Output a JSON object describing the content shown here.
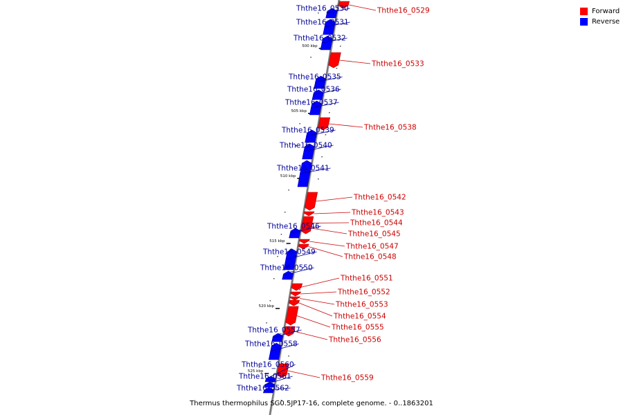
{
  "legend": {
    "items": [
      {
        "label": "Forward",
        "color": "#ff0000"
      },
      {
        "label": "Reverse",
        "color": "#0000ff"
      }
    ]
  },
  "caption": "Thermus thermophilus SG0.5JP17-16, complete genome. - 0..1863201",
  "colors": {
    "forward": "#ff0000",
    "reverse": "#0000ff",
    "backbone": "#888888",
    "label_forward": "#cc0000",
    "label_reverse": "#00009a"
  },
  "ticks": [
    "500 kbp",
    "505 kbp",
    "510 kbp",
    "515 kbp",
    "520 kbp",
    "525 kbp"
  ],
  "genes": [
    {
      "name": "Ththe16_0529",
      "strand": "forward"
    },
    {
      "name": "Ththe16_0530",
      "strand": "reverse"
    },
    {
      "name": "Ththe16_0531",
      "strand": "reverse"
    },
    {
      "name": "Ththe16_0532",
      "strand": "reverse"
    },
    {
      "name": "Ththe16_0533",
      "strand": "forward"
    },
    {
      "name": "Ththe16_0535",
      "strand": "reverse"
    },
    {
      "name": "Ththe16_0536",
      "strand": "reverse"
    },
    {
      "name": "Ththe16_0537",
      "strand": "reverse"
    },
    {
      "name": "Ththe16_0538",
      "strand": "forward"
    },
    {
      "name": "Ththe16_0539",
      "strand": "reverse"
    },
    {
      "name": "Ththe16_0540",
      "strand": "reverse"
    },
    {
      "name": "Ththe16_0541",
      "strand": "reverse"
    },
    {
      "name": "Ththe16_0542",
      "strand": "forward"
    },
    {
      "name": "Ththe16_0543",
      "strand": "forward"
    },
    {
      "name": "Ththe16_0544",
      "strand": "forward"
    },
    {
      "name": "Ththe16_0545",
      "strand": "forward"
    },
    {
      "name": "Ththe16_0546",
      "strand": "reverse"
    },
    {
      "name": "Ththe16_0547",
      "strand": "forward"
    },
    {
      "name": "Ththe16_0548",
      "strand": "forward"
    },
    {
      "name": "Ththe16_0549",
      "strand": "reverse"
    },
    {
      "name": "Ththe16_0550",
      "strand": "reverse"
    },
    {
      "name": "Ththe16_0551",
      "strand": "forward"
    },
    {
      "name": "Ththe16_0552",
      "strand": "forward"
    },
    {
      "name": "Ththe16_0553",
      "strand": "forward"
    },
    {
      "name": "Ththe16_0554",
      "strand": "forward"
    },
    {
      "name": "Ththe16_0555",
      "strand": "forward"
    },
    {
      "name": "Ththe16_0556",
      "strand": "forward"
    },
    {
      "name": "Ththe16_0557",
      "strand": "reverse"
    },
    {
      "name": "Ththe16_0558",
      "strand": "reverse"
    },
    {
      "name": "Ththe16_0559",
      "strand": "forward"
    },
    {
      "name": "Ththe16_0560",
      "strand": "reverse"
    },
    {
      "name": "Ththe16_0561",
      "strand": "reverse"
    },
    {
      "name": "Ththe16_0562",
      "strand": "reverse"
    }
  ]
}
